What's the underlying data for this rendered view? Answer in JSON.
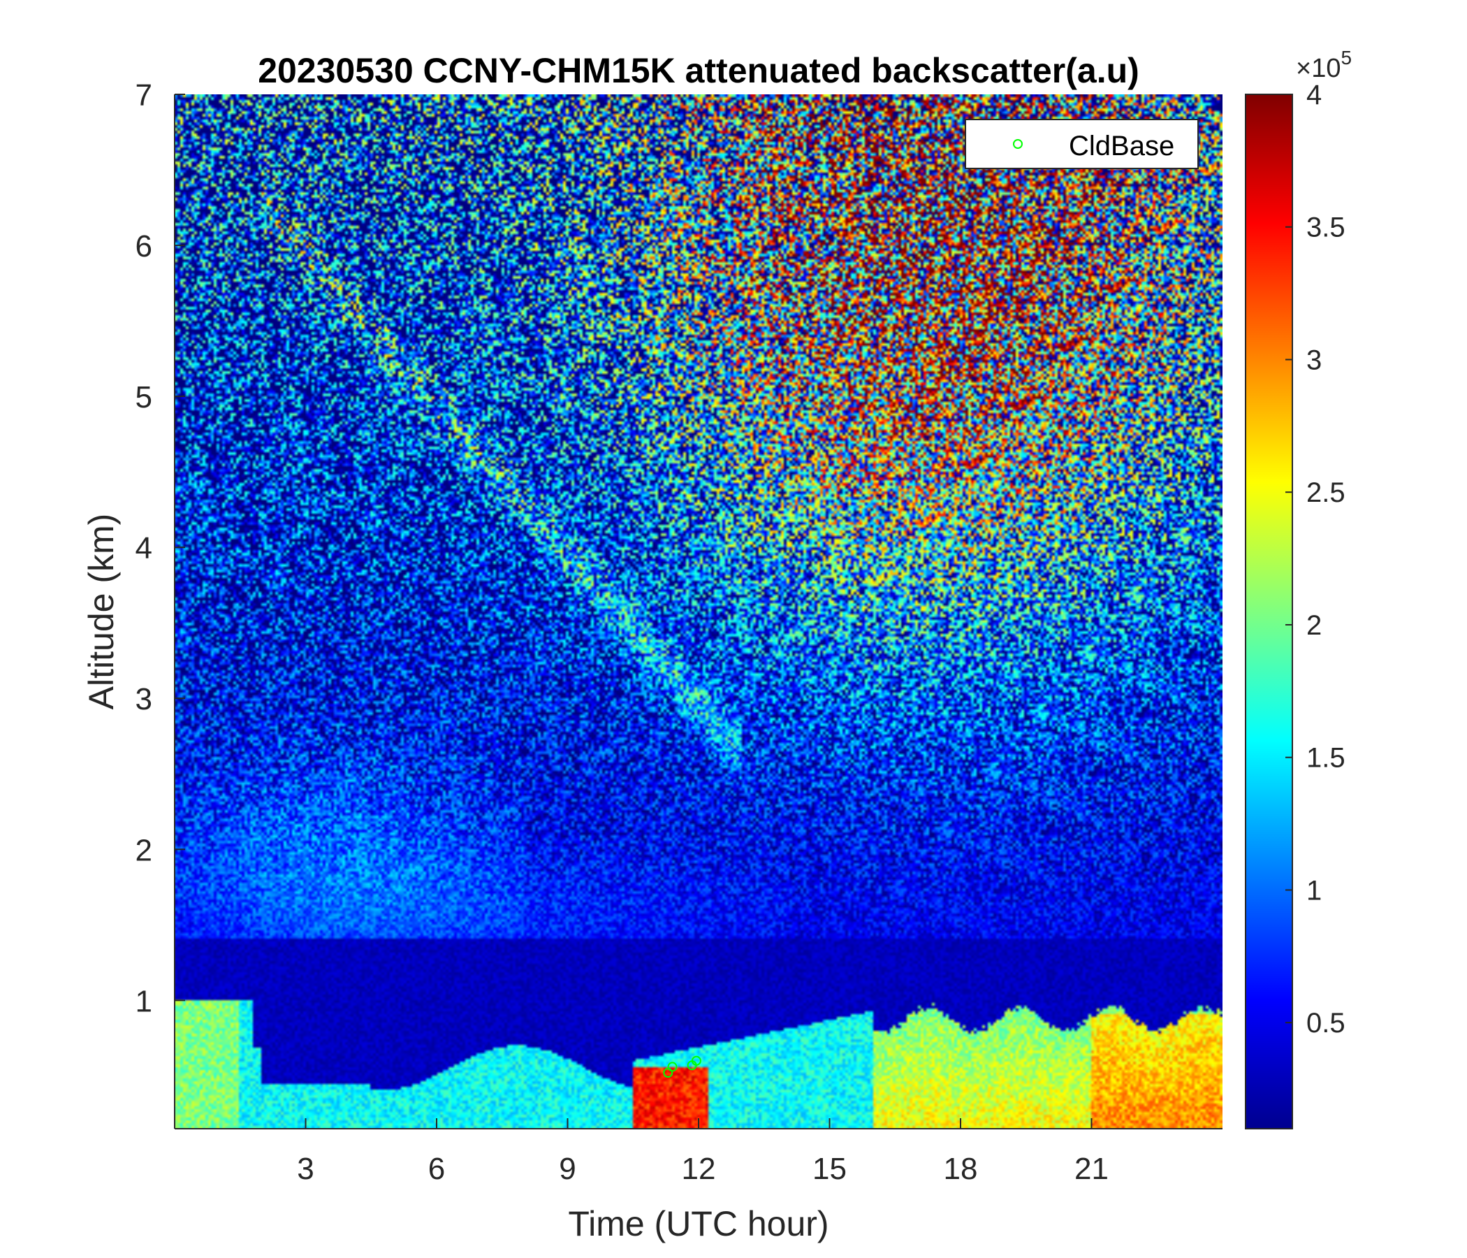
{
  "chart_data": {
    "type": "heatmap",
    "title": "20230530 CCNY-CHM15K attenuated backscatter(a.u)",
    "xlabel": "Time (UTC hour)",
    "ylabel": "Altitude (km)",
    "xlim": [
      0,
      24
    ],
    "ylim": [
      0.15,
      7
    ],
    "x_ticks": [
      3,
      6,
      9,
      12,
      15,
      18,
      21
    ],
    "y_ticks": [
      1,
      2,
      3,
      4,
      5,
      6,
      7
    ],
    "colormap": "jet",
    "colorbar": {
      "min": 0.1,
      "max": 4,
      "ticks": [
        0.5,
        1,
        1.5,
        2,
        2.5,
        3,
        3.5,
        4
      ],
      "tick_labels": [
        "0.5",
        "1",
        "1.5",
        "2",
        "2.5",
        "3",
        "3.5",
        "4"
      ],
      "multiplier_base": "×10",
      "multiplier_exponent": "5"
    },
    "legend": {
      "position": "top-right",
      "entries": [
        "CldBase"
      ]
    },
    "series": [
      {
        "name": "CldBase",
        "marker": "circle",
        "color": "#00ff00",
        "points": [
          {
            "x": 11.3,
            "y": 0.52
          },
          {
            "x": 11.4,
            "y": 0.56
          },
          {
            "x": 11.85,
            "y": 0.57
          },
          {
            "x": 11.95,
            "y": 0.6
          }
        ]
      }
    ]
  }
}
